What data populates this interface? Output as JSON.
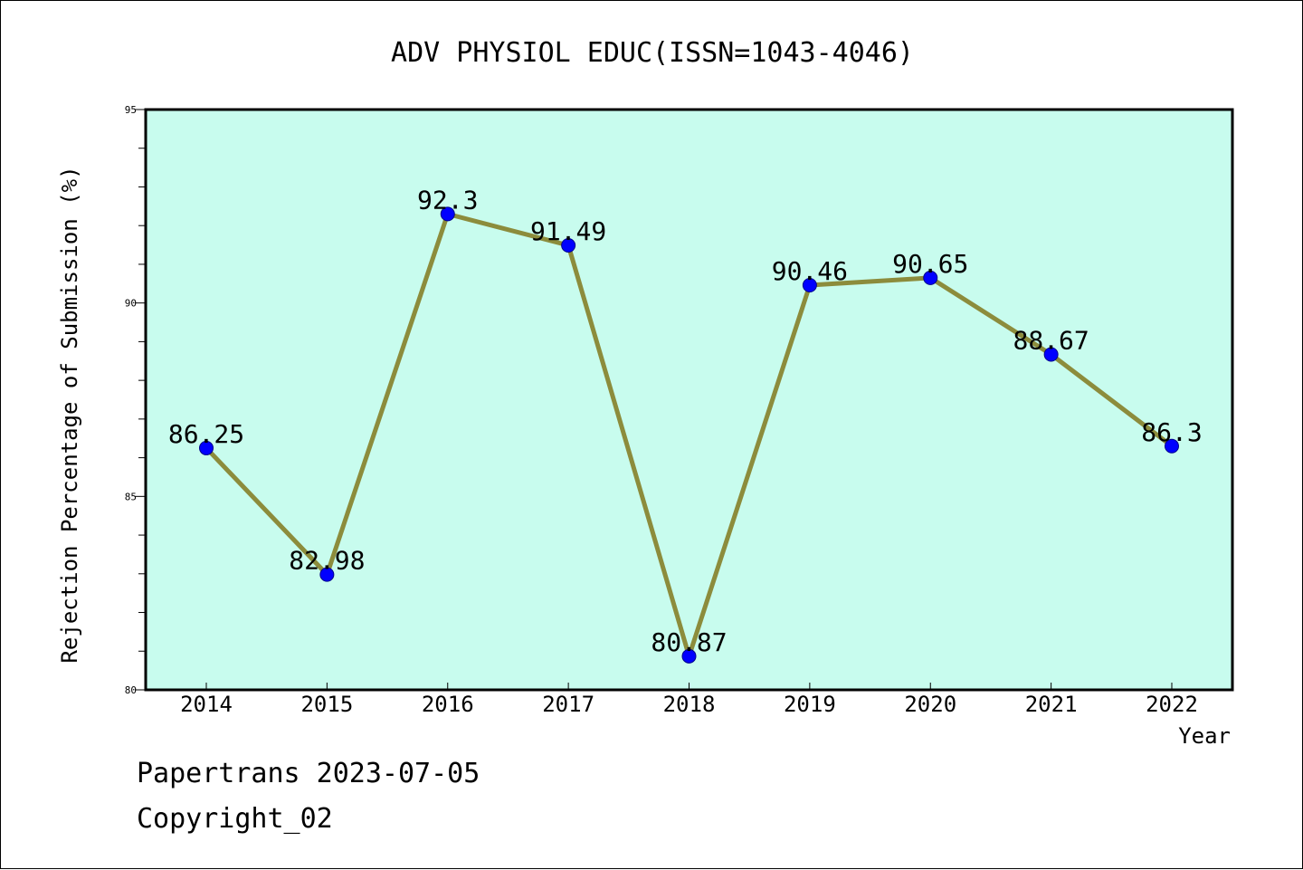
{
  "chart_data": {
    "type": "line",
    "title": "ADV PHYSIOL EDUC(ISSN=1043-4046)",
    "xlabel": "Year",
    "ylabel": "Rejection Percentage of Submission (%)",
    "categories": [
      "2014",
      "2015",
      "2016",
      "2017",
      "2018",
      "2019",
      "2020",
      "2021",
      "2022"
    ],
    "values": [
      86.25,
      82.98,
      92.3,
      91.49,
      80.87,
      90.46,
      90.65,
      88.67,
      86.3
    ],
    "data_labels": [
      "86.25",
      "82.98",
      "92.3",
      "91.49",
      "80.87",
      "90.46",
      "90.65",
      "88.67",
      "86.3"
    ],
    "ylim": [
      80,
      95
    ],
    "y_ticks": [
      80,
      85,
      90,
      95
    ],
    "y_tick_labels": [
      "80",
      "85",
      "90",
      "95"
    ],
    "grid": false,
    "colors": {
      "plot_background": "#c8fcee",
      "line": "#8c8c3c",
      "marker": "#0000ff"
    }
  },
  "footer": {
    "date_text": "Papertrans 2023-07-05",
    "copyright_text": "Copyright_02"
  }
}
